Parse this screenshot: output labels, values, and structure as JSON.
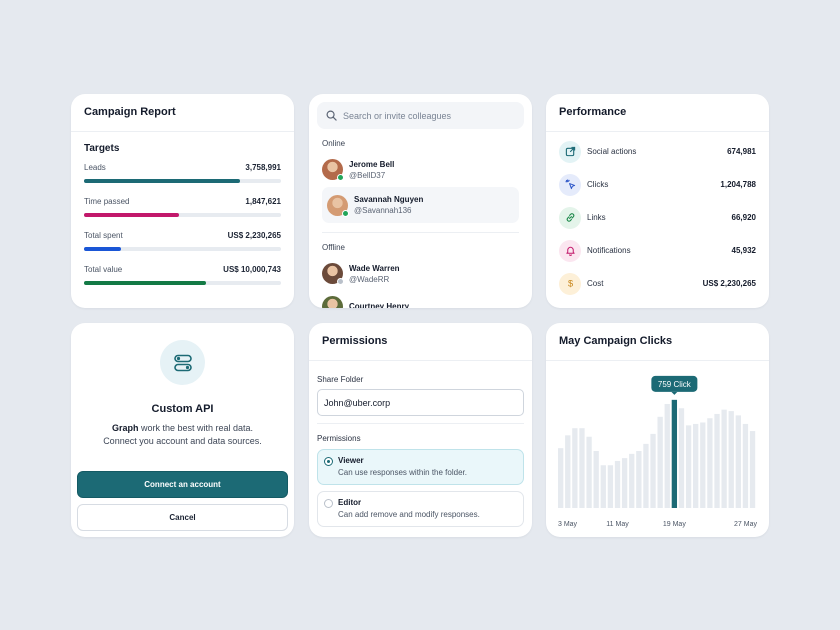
{
  "report": {
    "title": "Campaign Report",
    "subtitle": "Targets",
    "metrics": [
      {
        "label": "Leads",
        "value": "3,758,991",
        "progress": 0.79,
        "color": "#1c6a75"
      },
      {
        "label": "Time passed",
        "value": "1,847,621",
        "progress": 0.48,
        "color": "#c2186b"
      },
      {
        "label": "Total spent",
        "value": "US$ 2,230,265",
        "progress": 0.19,
        "color": "#1a56d6"
      },
      {
        "label": "Total value",
        "value": "US$ 10,000,743",
        "progress": 0.62,
        "color": "#137a45"
      }
    ]
  },
  "people": {
    "search_placeholder": "Search or invite colleagues",
    "online_label": "Online",
    "offline_label": "Offline",
    "online": [
      {
        "name": "Jerome Bell",
        "handle": "@BellD37",
        "avatar_color": "#b36a4a"
      },
      {
        "name": "Savannah Nguyen",
        "handle": "@Savannah136",
        "avatar_color": "#d49b73"
      }
    ],
    "offline": [
      {
        "name": "Wade Warren",
        "handle": "@WadeRR",
        "avatar_color": "#6b4a3a"
      },
      {
        "name": "Courtney Henry",
        "handle": "",
        "avatar_color": "#5c6b3a"
      }
    ],
    "online_status_color": "#22a55a",
    "offline_status_color": "#b9c0ca"
  },
  "performance": {
    "title": "Performance",
    "rows": [
      {
        "label": "Social actions",
        "value": "674,981",
        "icon": "share-icon",
        "bg": "#e3f3f5",
        "fg": "#1c6a75"
      },
      {
        "label": "Clicks",
        "value": "1,204,788",
        "icon": "cursor-click-icon",
        "bg": "#e5ebfb",
        "fg": "#2c55c8"
      },
      {
        "label": "Links",
        "value": "66,920",
        "icon": "link-icon",
        "bg": "#e4f4ea",
        "fg": "#1f8a4c"
      },
      {
        "label": "Notifications",
        "value": "45,932",
        "icon": "bell-icon",
        "bg": "#fbe6f0",
        "fg": "#c2186b"
      },
      {
        "label": "Cost",
        "value": "US$ 2,230,265",
        "icon": "dollar-icon",
        "bg": "#fdf0d8",
        "fg": "#c7851a"
      }
    ]
  },
  "api": {
    "title": "Custom API",
    "desc_bold": "Graph",
    "desc_rest": " work the best with real data.",
    "desc_line2": "Connect you account and data sources.",
    "connect_label": "Connect an account",
    "cancel_label": "Cancel"
  },
  "permissions": {
    "title": "Permissions",
    "share_label": "Share Folder",
    "share_value": "John@uber.corp",
    "perm_label": "Permissions",
    "options": [
      {
        "title": "Viewer",
        "desc": "Can use responses within the folder.",
        "selected": true
      },
      {
        "title": "Editor",
        "desc": "Can add remove and modify responses.",
        "selected": false
      }
    ]
  },
  "chart_data": {
    "type": "bar",
    "title": "May Campaign Clicks",
    "categories": [
      "1",
      "2",
      "3",
      "4",
      "5",
      "6",
      "7",
      "8",
      "9",
      "10",
      "11",
      "12",
      "13",
      "14",
      "15",
      "16",
      "17",
      "18",
      "19",
      "20",
      "21",
      "22",
      "23",
      "24",
      "25",
      "26",
      "27",
      "28"
    ],
    "values": [
      420,
      510,
      560,
      560,
      500,
      400,
      300,
      300,
      330,
      350,
      380,
      400,
      450,
      520,
      640,
      730,
      759,
      700,
      580,
      590,
      600,
      630,
      660,
      690,
      680,
      650,
      590,
      540
    ],
    "xtick_labels": [
      "3 May",
      "11 May",
      "19 May",
      "27 May"
    ],
    "highlight_index": 16,
    "highlight_label": "759 Click",
    "highlight_color": "#1c6a75",
    "bar_color": "#e6eaef",
    "ylim": [
      0,
      800
    ]
  }
}
